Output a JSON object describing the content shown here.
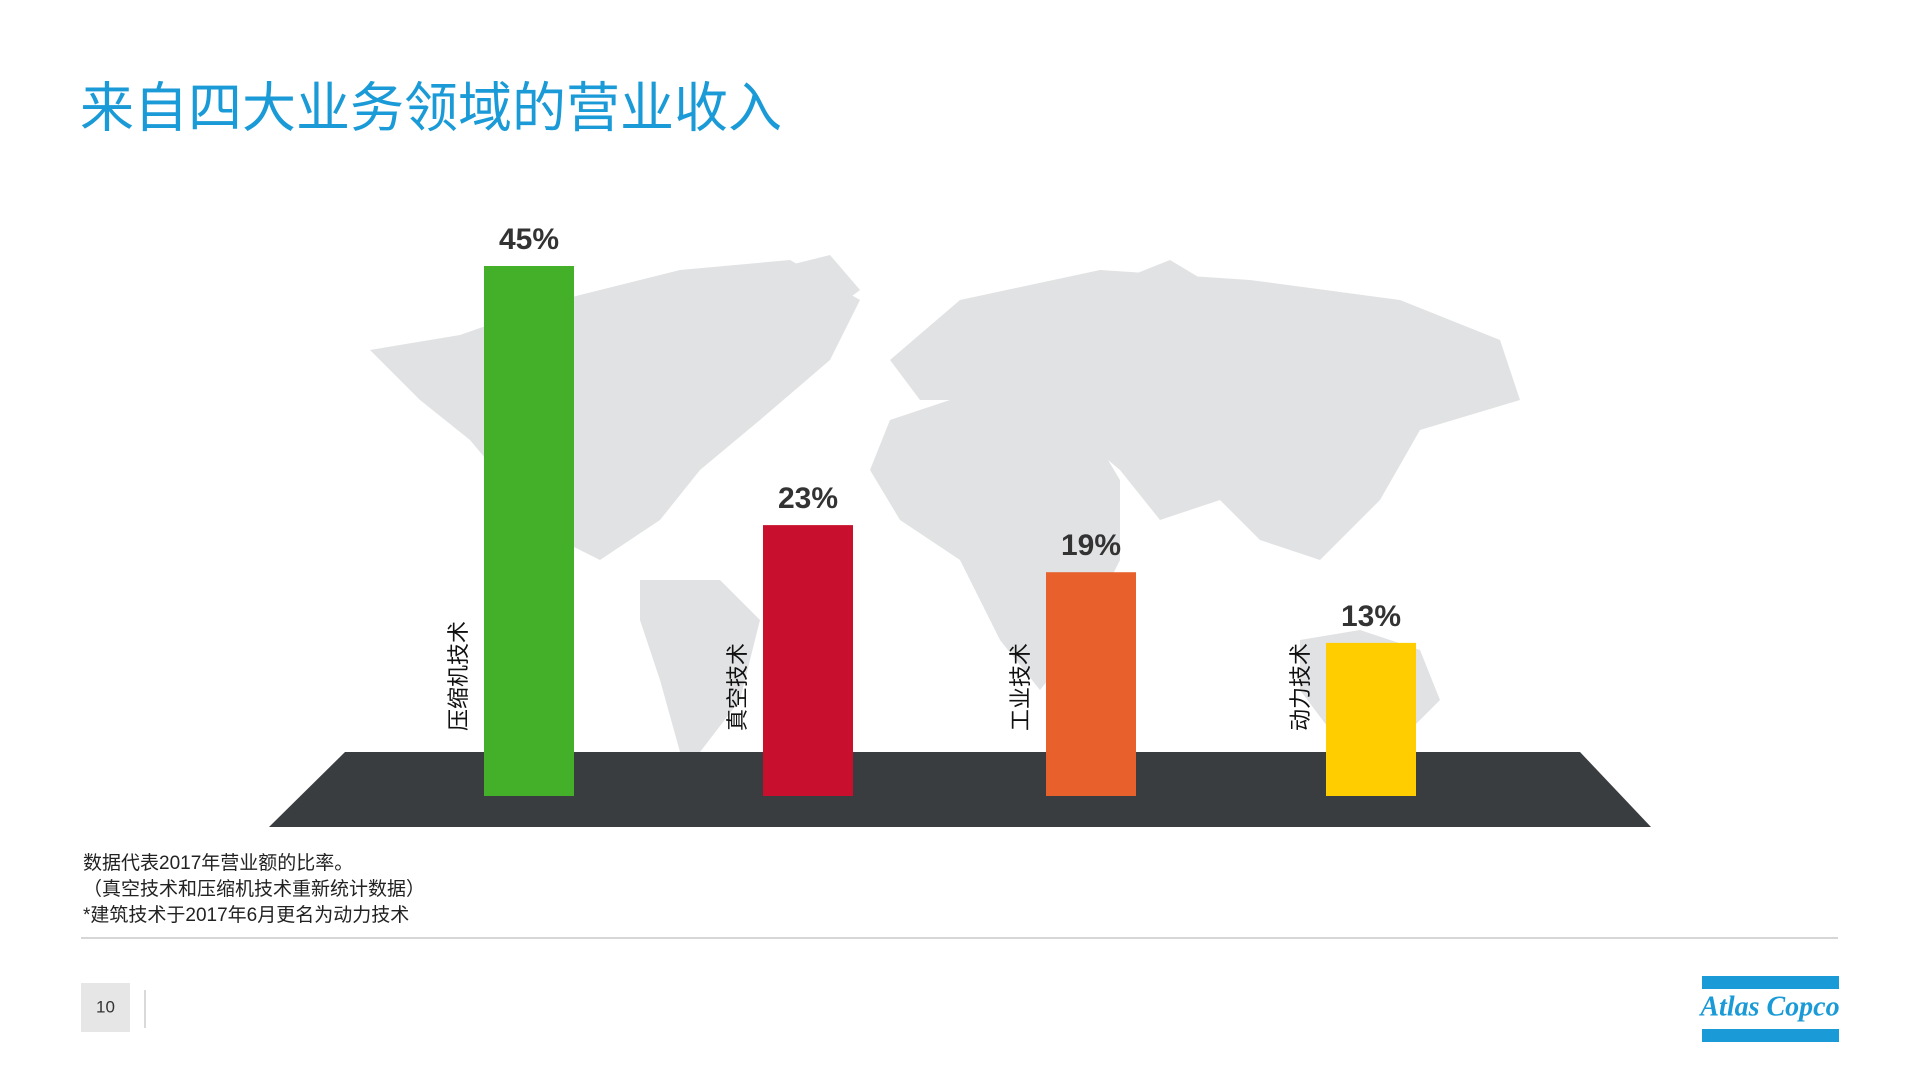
{
  "chart_data": {
    "type": "bar",
    "title": "来自四大业务领域的营业收入",
    "categories": [
      "压缩机技术",
      "真空技术",
      "工业技术",
      "动力技术"
    ],
    "values": [
      45,
      23,
      19,
      13
    ],
    "value_labels": [
      "45%",
      "23%",
      "19%",
      "13%"
    ],
    "colors": [
      "#44b02a",
      "#c8102e",
      "#e8602b",
      "#ffcd00"
    ],
    "notes": [
      "数据代表2017年营业额的比率。",
      "（真空技术和压缩机技术重新统计数据）",
      "*建筑技术于2017年6月更名为动力技术"
    ]
  },
  "page_number": "10",
  "logo": "Atlas Copco"
}
